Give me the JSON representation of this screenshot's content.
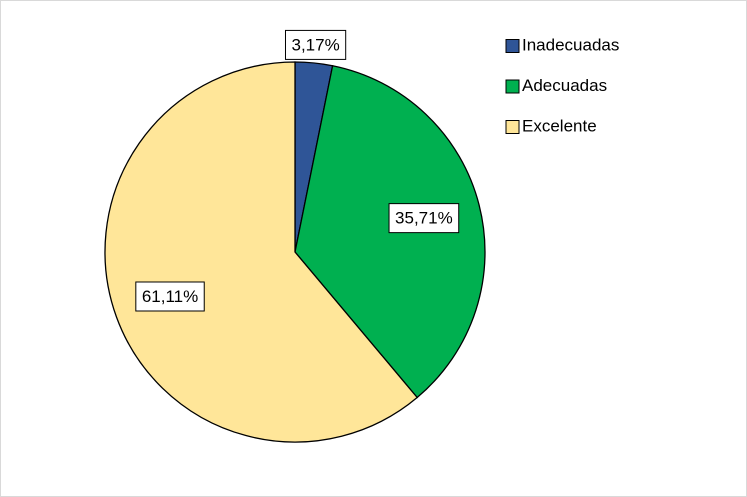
{
  "chart_data": {
    "type": "pie",
    "categories": [
      "Inadecuadas",
      "Adecuadas",
      "Excelente"
    ],
    "values": [
      3.17,
      35.71,
      61.11
    ],
    "value_labels": [
      "3,17%",
      "35,71%",
      "61,11%"
    ],
    "colors": [
      "#2f5597",
      "#00b050",
      "#ffe699"
    ],
    "legend": "right"
  }
}
